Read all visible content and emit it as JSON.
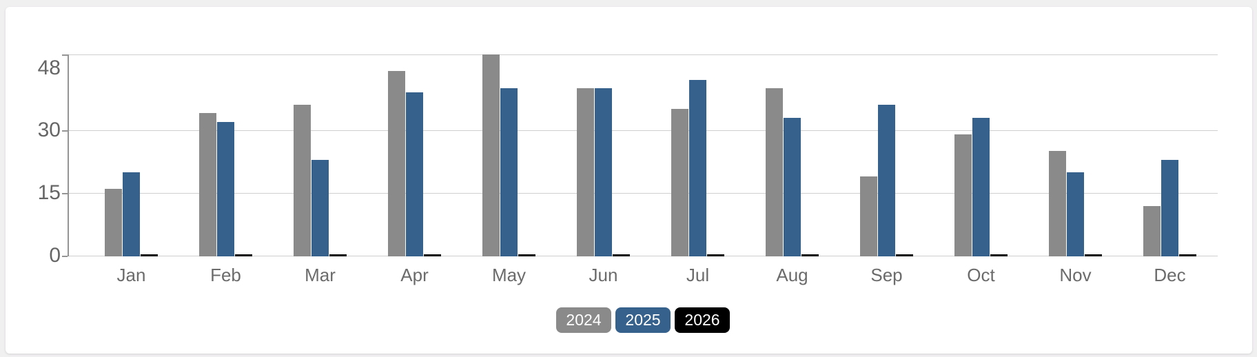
{
  "page": {
    "background_color": "#f1f0f1",
    "card_color": "#ffffff"
  },
  "chart_data": {
    "type": "bar",
    "categories": [
      "Jan",
      "Feb",
      "Mar",
      "Apr",
      "May",
      "Jun",
      "Jul",
      "Aug",
      "Sep",
      "Oct",
      "Nov",
      "Dec"
    ],
    "series": [
      {
        "name": "2024",
        "color": "#8a8a8a",
        "values": [
          16,
          34,
          36,
          44,
          48,
          40,
          35,
          40,
          19,
          29,
          25,
          12
        ]
      },
      {
        "name": "2025",
        "color": "#35618c",
        "values": [
          20,
          32,
          23,
          39,
          40,
          40,
          42,
          33,
          36,
          33,
          20,
          23
        ]
      },
      {
        "name": "2026",
        "color": "#000000",
        "values": [
          0,
          0,
          0,
          0,
          0,
          0,
          0,
          0,
          0,
          0,
          0,
          0
        ]
      }
    ],
    "y_axis": {
      "ticks": [
        0,
        15,
        30,
        48
      ],
      "ylim": [
        0,
        48
      ]
    },
    "xlabel": "",
    "ylabel": "",
    "grid": true,
    "legend_position": "bottom",
    "colors": {
      "grid": "#cfcfcf",
      "axis": "#949494",
      "tick_label": "#666666",
      "category_label": "#6b6b6b",
      "legend_text": "#ffffff"
    }
  }
}
